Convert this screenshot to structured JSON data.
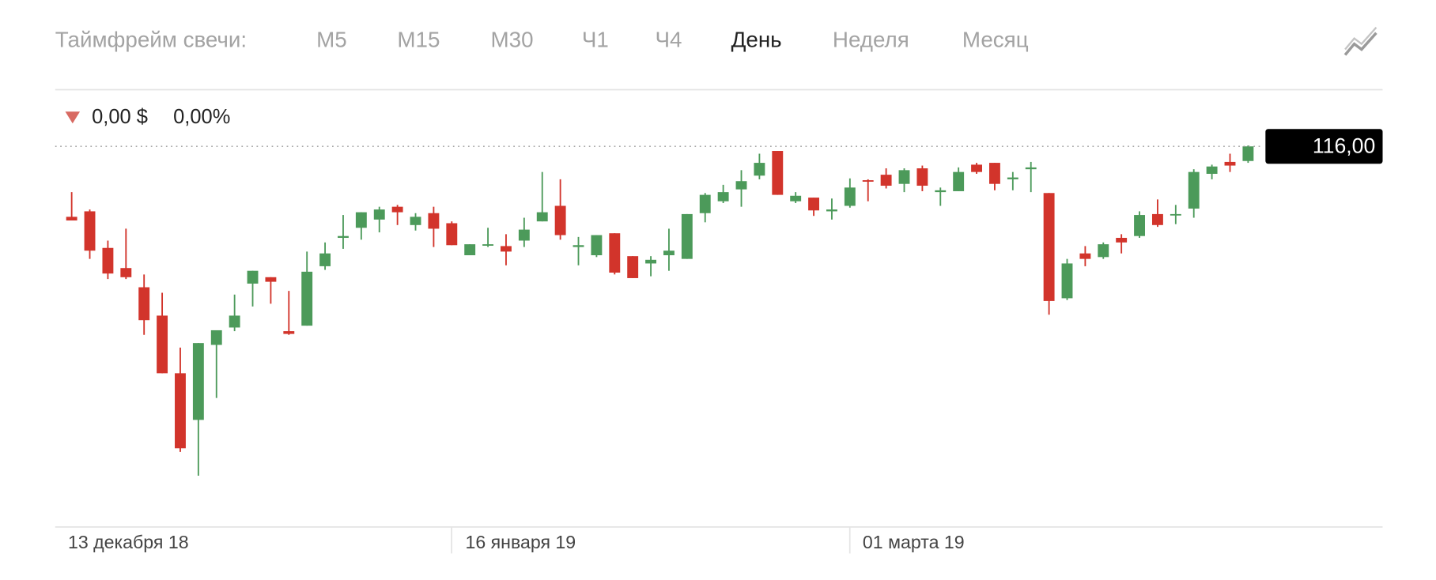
{
  "header": {
    "label": "Таймфрейм свечи:",
    "timeframes": [
      "М5",
      "М15",
      "М30",
      "Ч1",
      "Ч4",
      "День",
      "Неделя",
      "Месяц"
    ],
    "selected": 5
  },
  "change": {
    "amount": "0,00 $",
    "percent": "0,00%"
  },
  "chart_data": {
    "type": "candlestick",
    "ylim": [
      78,
      118
    ],
    "up_color": "#4c9a5a",
    "down_color": "#d2342b",
    "last_price": 116,
    "last_price_label": "116,00",
    "x_labels": [
      "13 декабря 18",
      "16 января 19",
      "01 марта 19"
    ],
    "open": [
      108.3,
      108.9,
      104.9,
      102.7,
      100.6,
      97.5,
      91.2,
      86.1,
      94.3,
      96.2,
      101.0,
      101.7,
      95.8,
      96.4,
      102.9,
      106.0,
      107.1,
      108.0,
      109.4,
      107.4,
      108.7,
      107.6,
      104.1,
      105.2,
      105.1,
      105.7,
      107.8,
      109.5,
      105.0,
      104.1,
      106.5,
      104.0,
      103.2,
      104.1,
      103.7,
      108.7,
      110.0,
      111.3,
      112.8,
      115.5,
      110.0,
      110.4,
      108.9,
      109.5,
      112.3,
      112.9,
      111.9,
      113.6,
      111.0,
      111.1,
      114.0,
      114.2,
      112.4,
      113.5,
      110.9,
      99.4,
      104.3,
      103.9,
      106.0,
      106.2,
      108.6,
      108.5,
      109.2,
      113.0,
      114.3,
      114.4
    ],
    "high": [
      111.0,
      109.1,
      105.7,
      107.0,
      102.0,
      100.0,
      94.0,
      94.5,
      95.9,
      99.8,
      102.4,
      101.7,
      100.2,
      104.5,
      105.5,
      108.5,
      108.8,
      109.4,
      109.6,
      108.7,
      109.4,
      107.8,
      105.3,
      107.1,
      106.4,
      108.2,
      113.2,
      112.4,
      106.1,
      106.3,
      106.5,
      104.0,
      104.0,
      107.0,
      108.6,
      110.9,
      111.8,
      113.4,
      115.2,
      115.5,
      111.0,
      110.4,
      110.3,
      112.5,
      112.4,
      113.6,
      113.6,
      113.9,
      111.5,
      113.7,
      114.2,
      114.2,
      113.2,
      114.3,
      110.9,
      103.7,
      105.1,
      105.5,
      106.4,
      108.9,
      110.2,
      109.6,
      113.5,
      114.0,
      115.2,
      116.1
    ],
    "low": [
      107.9,
      103.7,
      101.5,
      101.5,
      95.4,
      91.2,
      82.6,
      80.0,
      88.5,
      95.8,
      98.5,
      98.8,
      95.4,
      96.4,
      102.5,
      104.8,
      105.8,
      106.6,
      107.4,
      106.8,
      105.0,
      105.2,
      104.1,
      105.0,
      103.0,
      105.0,
      107.8,
      105.8,
      103.0,
      103.9,
      102.0,
      101.6,
      101.8,
      102.4,
      103.7,
      107.7,
      109.8,
      109.4,
      112.4,
      110.7,
      109.8,
      108.4,
      108.0,
      109.3,
      110.0,
      111.4,
      111.0,
      111.1,
      109.5,
      111.1,
      113.0,
      111.2,
      111.2,
      111.0,
      97.6,
      99.2,
      102.9,
      103.7,
      104.3,
      106.0,
      107.2,
      107.5,
      108.2,
      112.4,
      113.2,
      114.2
    ],
    "close": [
      107.9,
      104.6,
      102.1,
      101.7,
      97.0,
      91.2,
      83.0,
      94.5,
      95.9,
      97.5,
      102.4,
      101.2,
      95.5,
      102.3,
      104.3,
      106.2,
      108.8,
      109.1,
      108.8,
      108.3,
      107.0,
      105.2,
      105.3,
      105.3,
      104.5,
      106.9,
      108.8,
      106.3,
      105.2,
      106.3,
      102.2,
      101.6,
      103.6,
      104.6,
      108.6,
      110.7,
      111.0,
      112.2,
      114.2,
      110.7,
      110.6,
      109.0,
      109.1,
      111.5,
      112.2,
      111.7,
      113.4,
      111.7,
      111.2,
      113.2,
      113.2,
      111.9,
      112.6,
      113.7,
      99.1,
      103.2,
      103.7,
      105.3,
      105.5,
      108.5,
      107.4,
      108.6,
      113.2,
      113.8,
      113.9,
      116.0
    ]
  }
}
